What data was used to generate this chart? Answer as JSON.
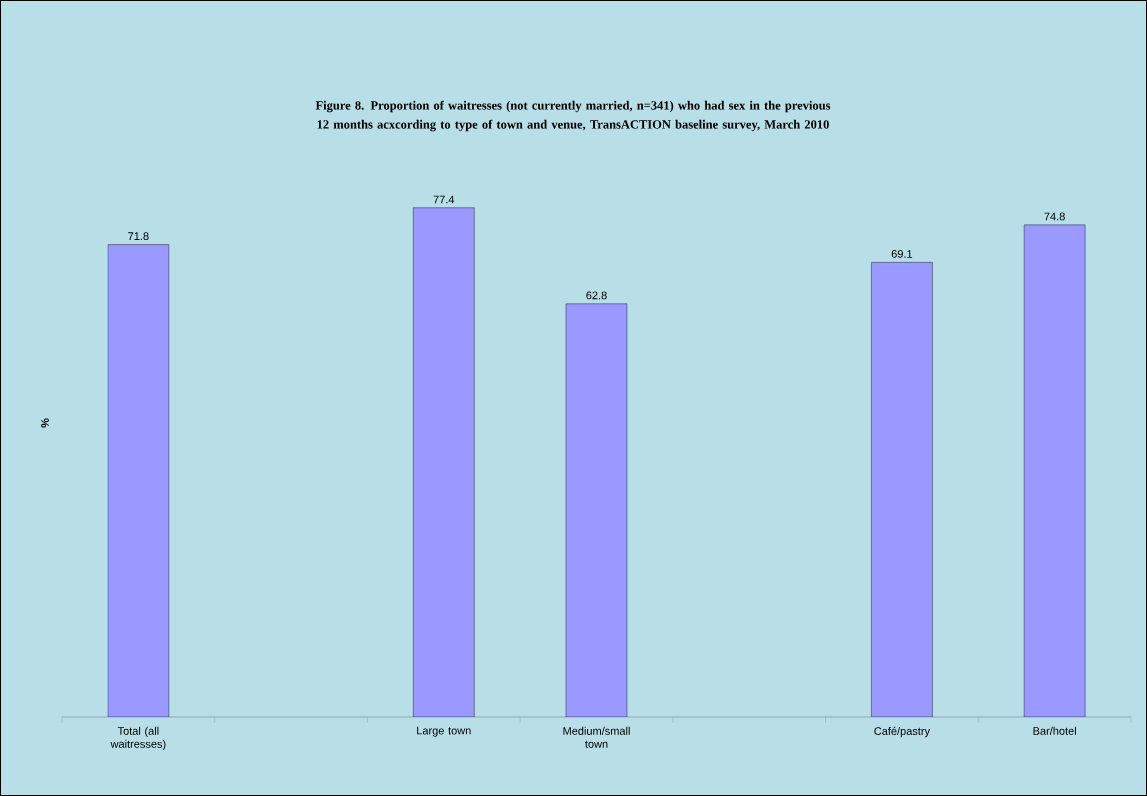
{
  "chart_data": {
    "type": "bar",
    "title": "Figure 8. Proportion of waitresses (not currently married, n=341) who had sex in the previous 12 months acxcording to type of town and venue, TransACTION baseline survey, March 2010",
    "ylabel": "%",
    "categories": [
      "Total (all waitresses)",
      null,
      "Large town",
      "Medium/small town",
      null,
      "Café/pastry",
      "Bar/hotel"
    ],
    "values": [
      71.8,
      null,
      77.4,
      62.8,
      null,
      69.1,
      74.8
    ],
    "color": "#9999ff",
    "data_labels": true
  }
}
